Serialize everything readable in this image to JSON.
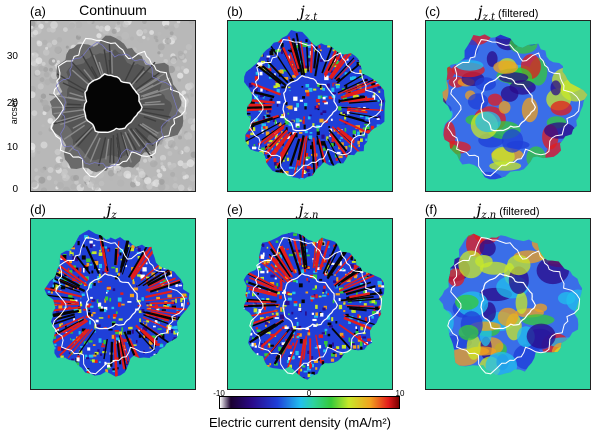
{
  "panels": [
    {
      "label": "(a)",
      "title": "Continuum",
      "title_style": "text",
      "sym": "",
      "sub": "",
      "suffix": "",
      "kind": "continuum"
    },
    {
      "label": "(b)",
      "title": "",
      "title_style": "math",
      "sym": "j",
      "sub": "z,t",
      "suffix": "",
      "kind": "map"
    },
    {
      "label": "(c)",
      "title": "",
      "title_style": "math",
      "sym": "j",
      "sub": "z,t",
      "suffix": "(filtered)",
      "kind": "filtered"
    },
    {
      "label": "(d)",
      "title": "",
      "title_style": "math",
      "sym": "j",
      "sub": "z",
      "suffix": "",
      "kind": "map"
    },
    {
      "label": "(e)",
      "title": "",
      "title_style": "math",
      "sym": "j",
      "sub": "z,n",
      "suffix": "",
      "kind": "map"
    },
    {
      "label": "(f)",
      "title": "",
      "title_style": "math",
      "sym": "j",
      "sub": "z,n",
      "suffix": "(filtered)",
      "kind": "filtered"
    }
  ],
  "y_axis": {
    "label": "arcsec",
    "ticks": [
      "30",
      "20",
      "10",
      "0"
    ]
  },
  "colorbar": {
    "ticks": [
      "-10",
      "0",
      "10"
    ],
    "title": "Electric current density (mA/m²)",
    "range": [
      -10,
      10
    ]
  },
  "colors": {
    "background_field": "#2fd3a0",
    "contour": "#ffffff",
    "umbra": "#050505"
  }
}
